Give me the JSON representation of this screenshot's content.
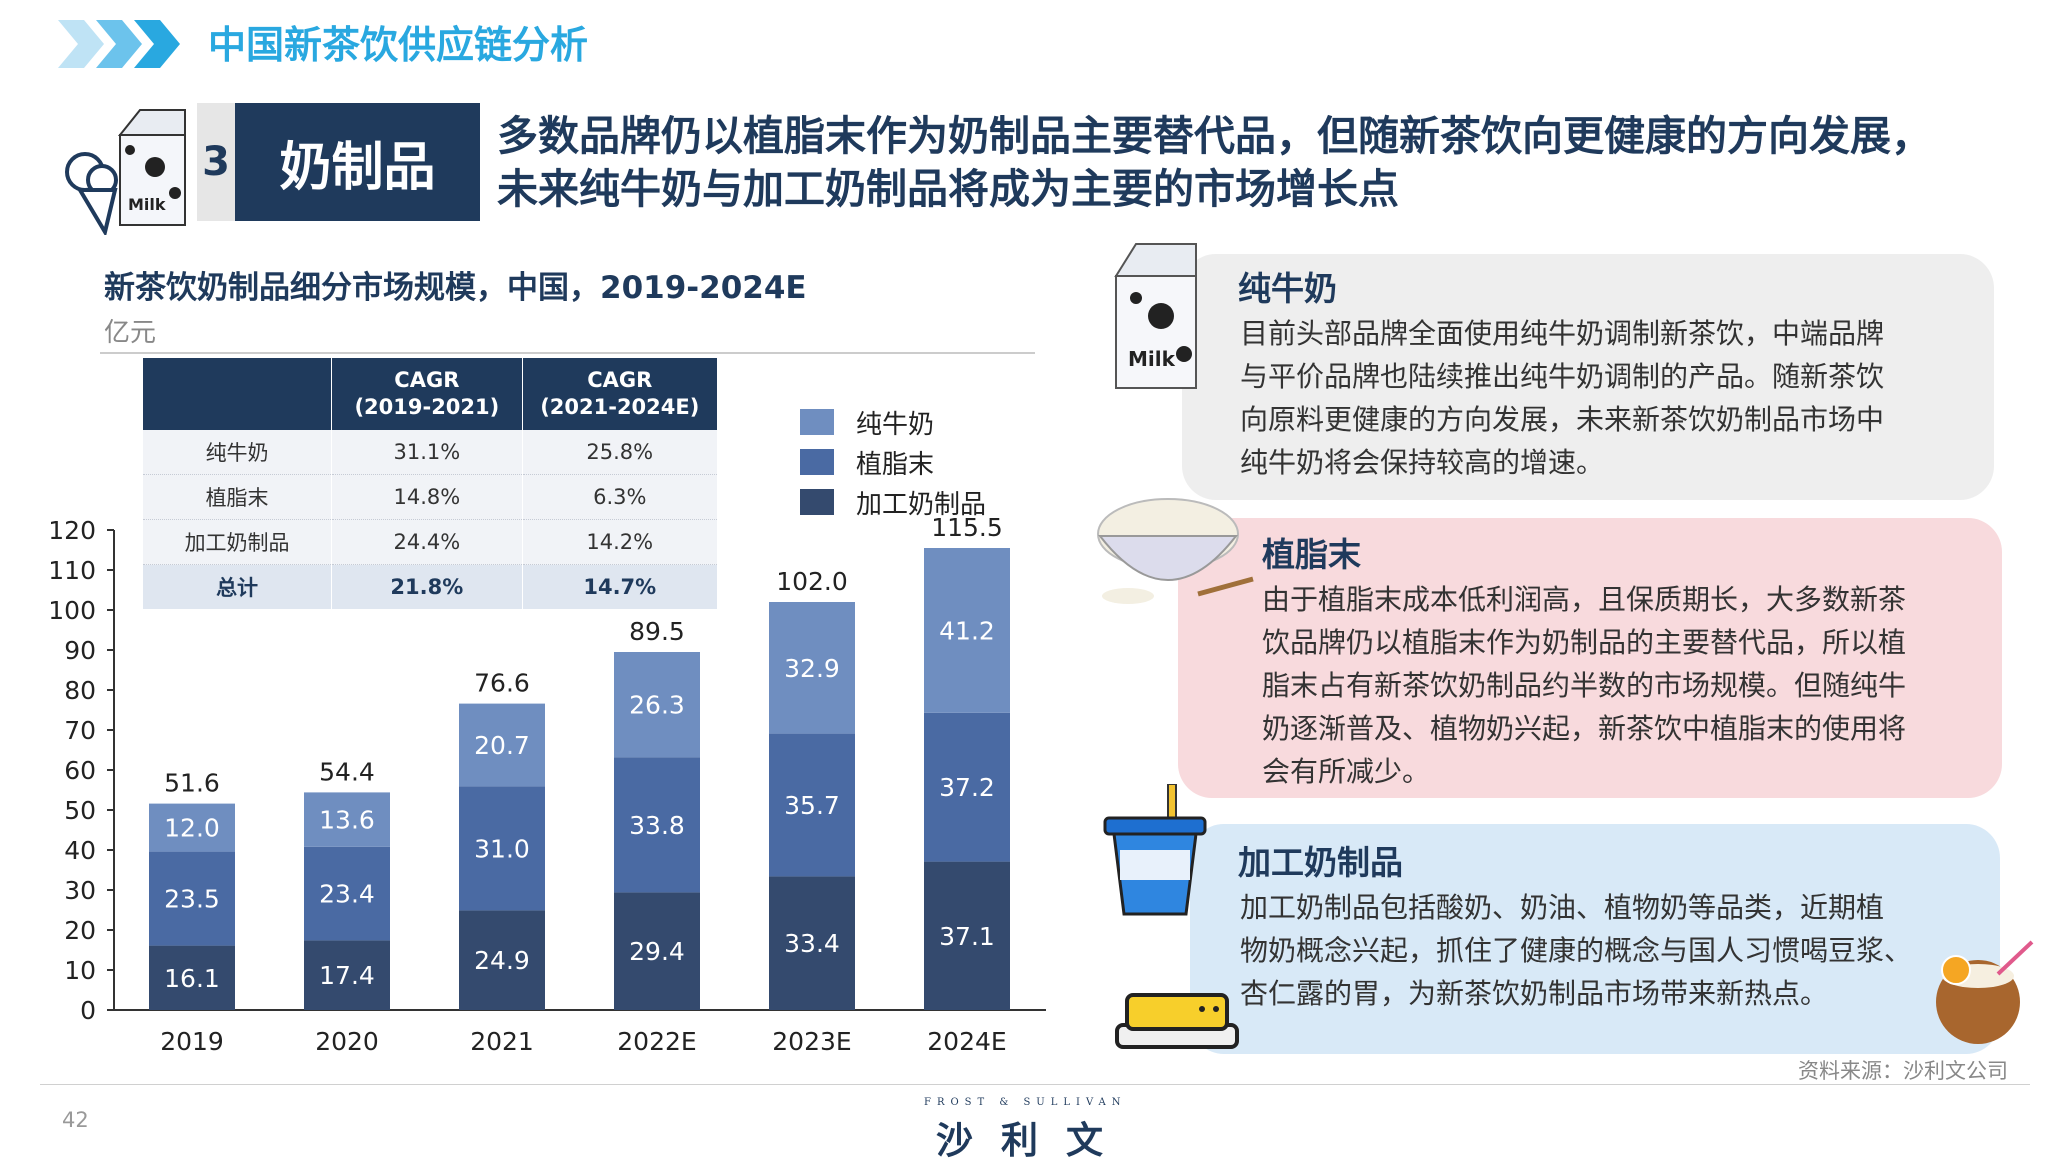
{
  "header": {
    "title": "中国新茶饮供应链分析"
  },
  "section": {
    "number": "3",
    "title": "奶制品",
    "headline_line1": "多数品牌仍以植脂末作为奶制品主要替代品，但随新茶饮向更健康的方向发展，",
    "headline_line2": "未来纯牛奶与加工奶制品将成为主要的市场增长点"
  },
  "chart": {
    "title": "新茶饮奶制品细分市场规模，中国，2019-2024E",
    "unit": "亿元"
  },
  "cagr_table": {
    "header": [
      "",
      "CAGR\n(2019-2021)",
      "CAGR\n(2021-2024E)"
    ],
    "header_col1_line1": "CAGR",
    "header_col1_line2": "(2019-2021)",
    "header_col2_line1": "CAGR",
    "header_col2_line2": "(2021-2024E)",
    "rows": [
      [
        "纯牛奶",
        "31.1%",
        "25.8%"
      ],
      [
        "植脂末",
        "14.8%",
        "6.3%"
      ],
      [
        "加工奶制品",
        "24.4%",
        "14.2%"
      ],
      [
        "总计",
        "21.8%",
        "14.7%"
      ]
    ]
  },
  "legend": [
    "纯牛奶",
    "植脂末",
    "加工奶制品"
  ],
  "chart_data": {
    "type": "bar",
    "stacked": true,
    "categories": [
      "2019",
      "2020",
      "2021",
      "2022E",
      "2023E",
      "2024E"
    ],
    "series": [
      {
        "name": "加工奶制品",
        "color": "#344a6e",
        "values": [
          16.1,
          17.4,
          24.9,
          29.4,
          33.4,
          37.1
        ]
      },
      {
        "name": "植脂末",
        "color": "#4a6aa3",
        "values": [
          23.5,
          23.4,
          31.0,
          33.8,
          35.7,
          37.2
        ]
      },
      {
        "name": "纯牛奶",
        "color": "#6f8ec0",
        "values": [
          12.0,
          13.6,
          20.7,
          26.3,
          32.9,
          41.2
        ]
      }
    ],
    "totals": [
      "51.6",
      "54.4",
      "76.6",
      "89.5",
      "102.0",
      "115.5"
    ],
    "ylim": [
      0,
      120
    ],
    "yticks": [
      0,
      10,
      20,
      30,
      40,
      50,
      60,
      70,
      80,
      90,
      100,
      110,
      120
    ],
    "grid": false,
    "legend_position": "top-right"
  },
  "cards": [
    {
      "title": "纯牛奶",
      "lines": [
        "目前头部品牌全面使用纯牛奶调制新茶饮，中端品牌",
        "与平价品牌也陆续推出纯牛奶调制的产品。随新茶饮",
        "向原料更健康的方向发展，未来新茶饮奶制品市场中",
        "纯牛奶将会保持较高的增速。"
      ],
      "bg": "#eeeeee"
    },
    {
      "title": "植脂末",
      "lines": [
        "由于植脂末成本低利润高，且保质期长，大多数新茶",
        "饮品牌仍以植脂末作为奶制品的主要替代品，所以植",
        "脂末占有新茶饮奶制品约半数的市场规模。但随纯牛",
        "奶逐渐普及、植物奶兴起，新茶饮中植脂末的使用将",
        "会有所减少。"
      ],
      "bg": "#f8dadd"
    },
    {
      "title": "加工奶制品",
      "lines": [
        "加工奶制品包括酸奶、奶油、植物奶等品类，近期植",
        "物奶概念兴起，抓住了健康的概念与国人习惯喝豆浆、",
        "杏仁露的胃，为新茶饮奶制品市场带来新热点。"
      ],
      "bg": "#d8e9f7"
    }
  ],
  "footer": {
    "source": "资料来源：沙利文公司",
    "page": "42",
    "brand_small": "FROST & SULLIVAN",
    "brand_big": "沙利文"
  },
  "icons": [
    "chevron-arrows-icon",
    "milk-carton-icon",
    "ice-cream-icon",
    "powder-bowl-icon",
    "yogurt-cup-icon",
    "butter-icon",
    "coconut-drink-icon"
  ]
}
